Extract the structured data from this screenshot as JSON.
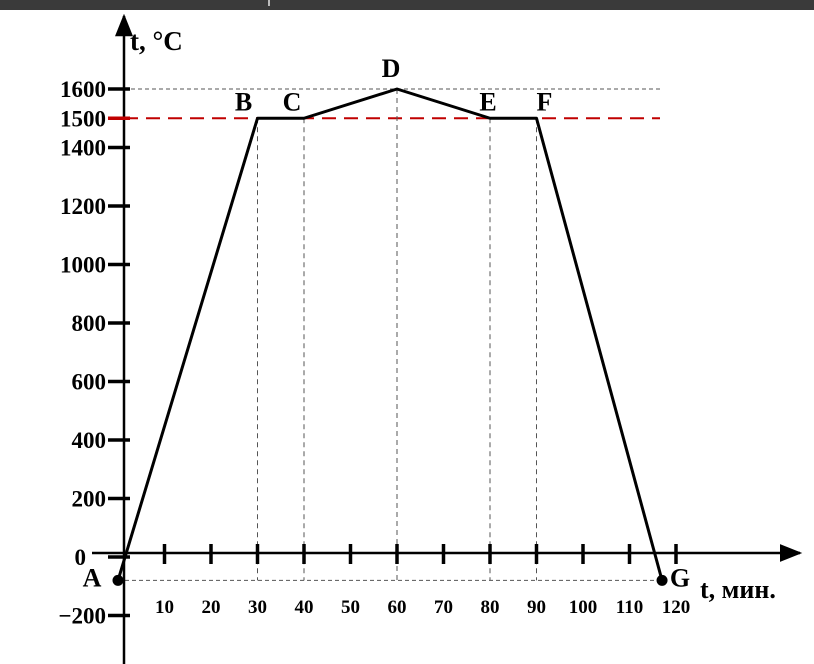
{
  "chart_data": {
    "type": "line",
    "xlabel": "t, мин.",
    "ylabel": "t, °C",
    "x_ticks": [
      10,
      20,
      30,
      40,
      50,
      60,
      70,
      80,
      90,
      100,
      110,
      120
    ],
    "y_ticks": [
      -200,
      0,
      200,
      400,
      600,
      800,
      1000,
      1200,
      1400,
      1500,
      1600
    ],
    "y_tick_labels": [
      "−200",
      "0",
      "200",
      "400",
      "600",
      "800",
      "1000",
      "1200",
      "1400",
      "1500",
      "1600"
    ],
    "highlight_tick": 1500,
    "highlight_color": "#c00000",
    "line_color": "#000000",
    "points": [
      {
        "label": "A",
        "x": 0,
        "y": -80
      },
      {
        "label": "B",
        "x": 30,
        "y": 1500
      },
      {
        "label": "C",
        "x": 40,
        "y": 1500
      },
      {
        "label": "D",
        "x": 60,
        "y": 1600
      },
      {
        "label": "E",
        "x": 80,
        "y": 1500
      },
      {
        "label": "F",
        "x": 90,
        "y": 1500
      },
      {
        "label": "G",
        "x": 117,
        "y": -80
      }
    ],
    "grid": false
  }
}
